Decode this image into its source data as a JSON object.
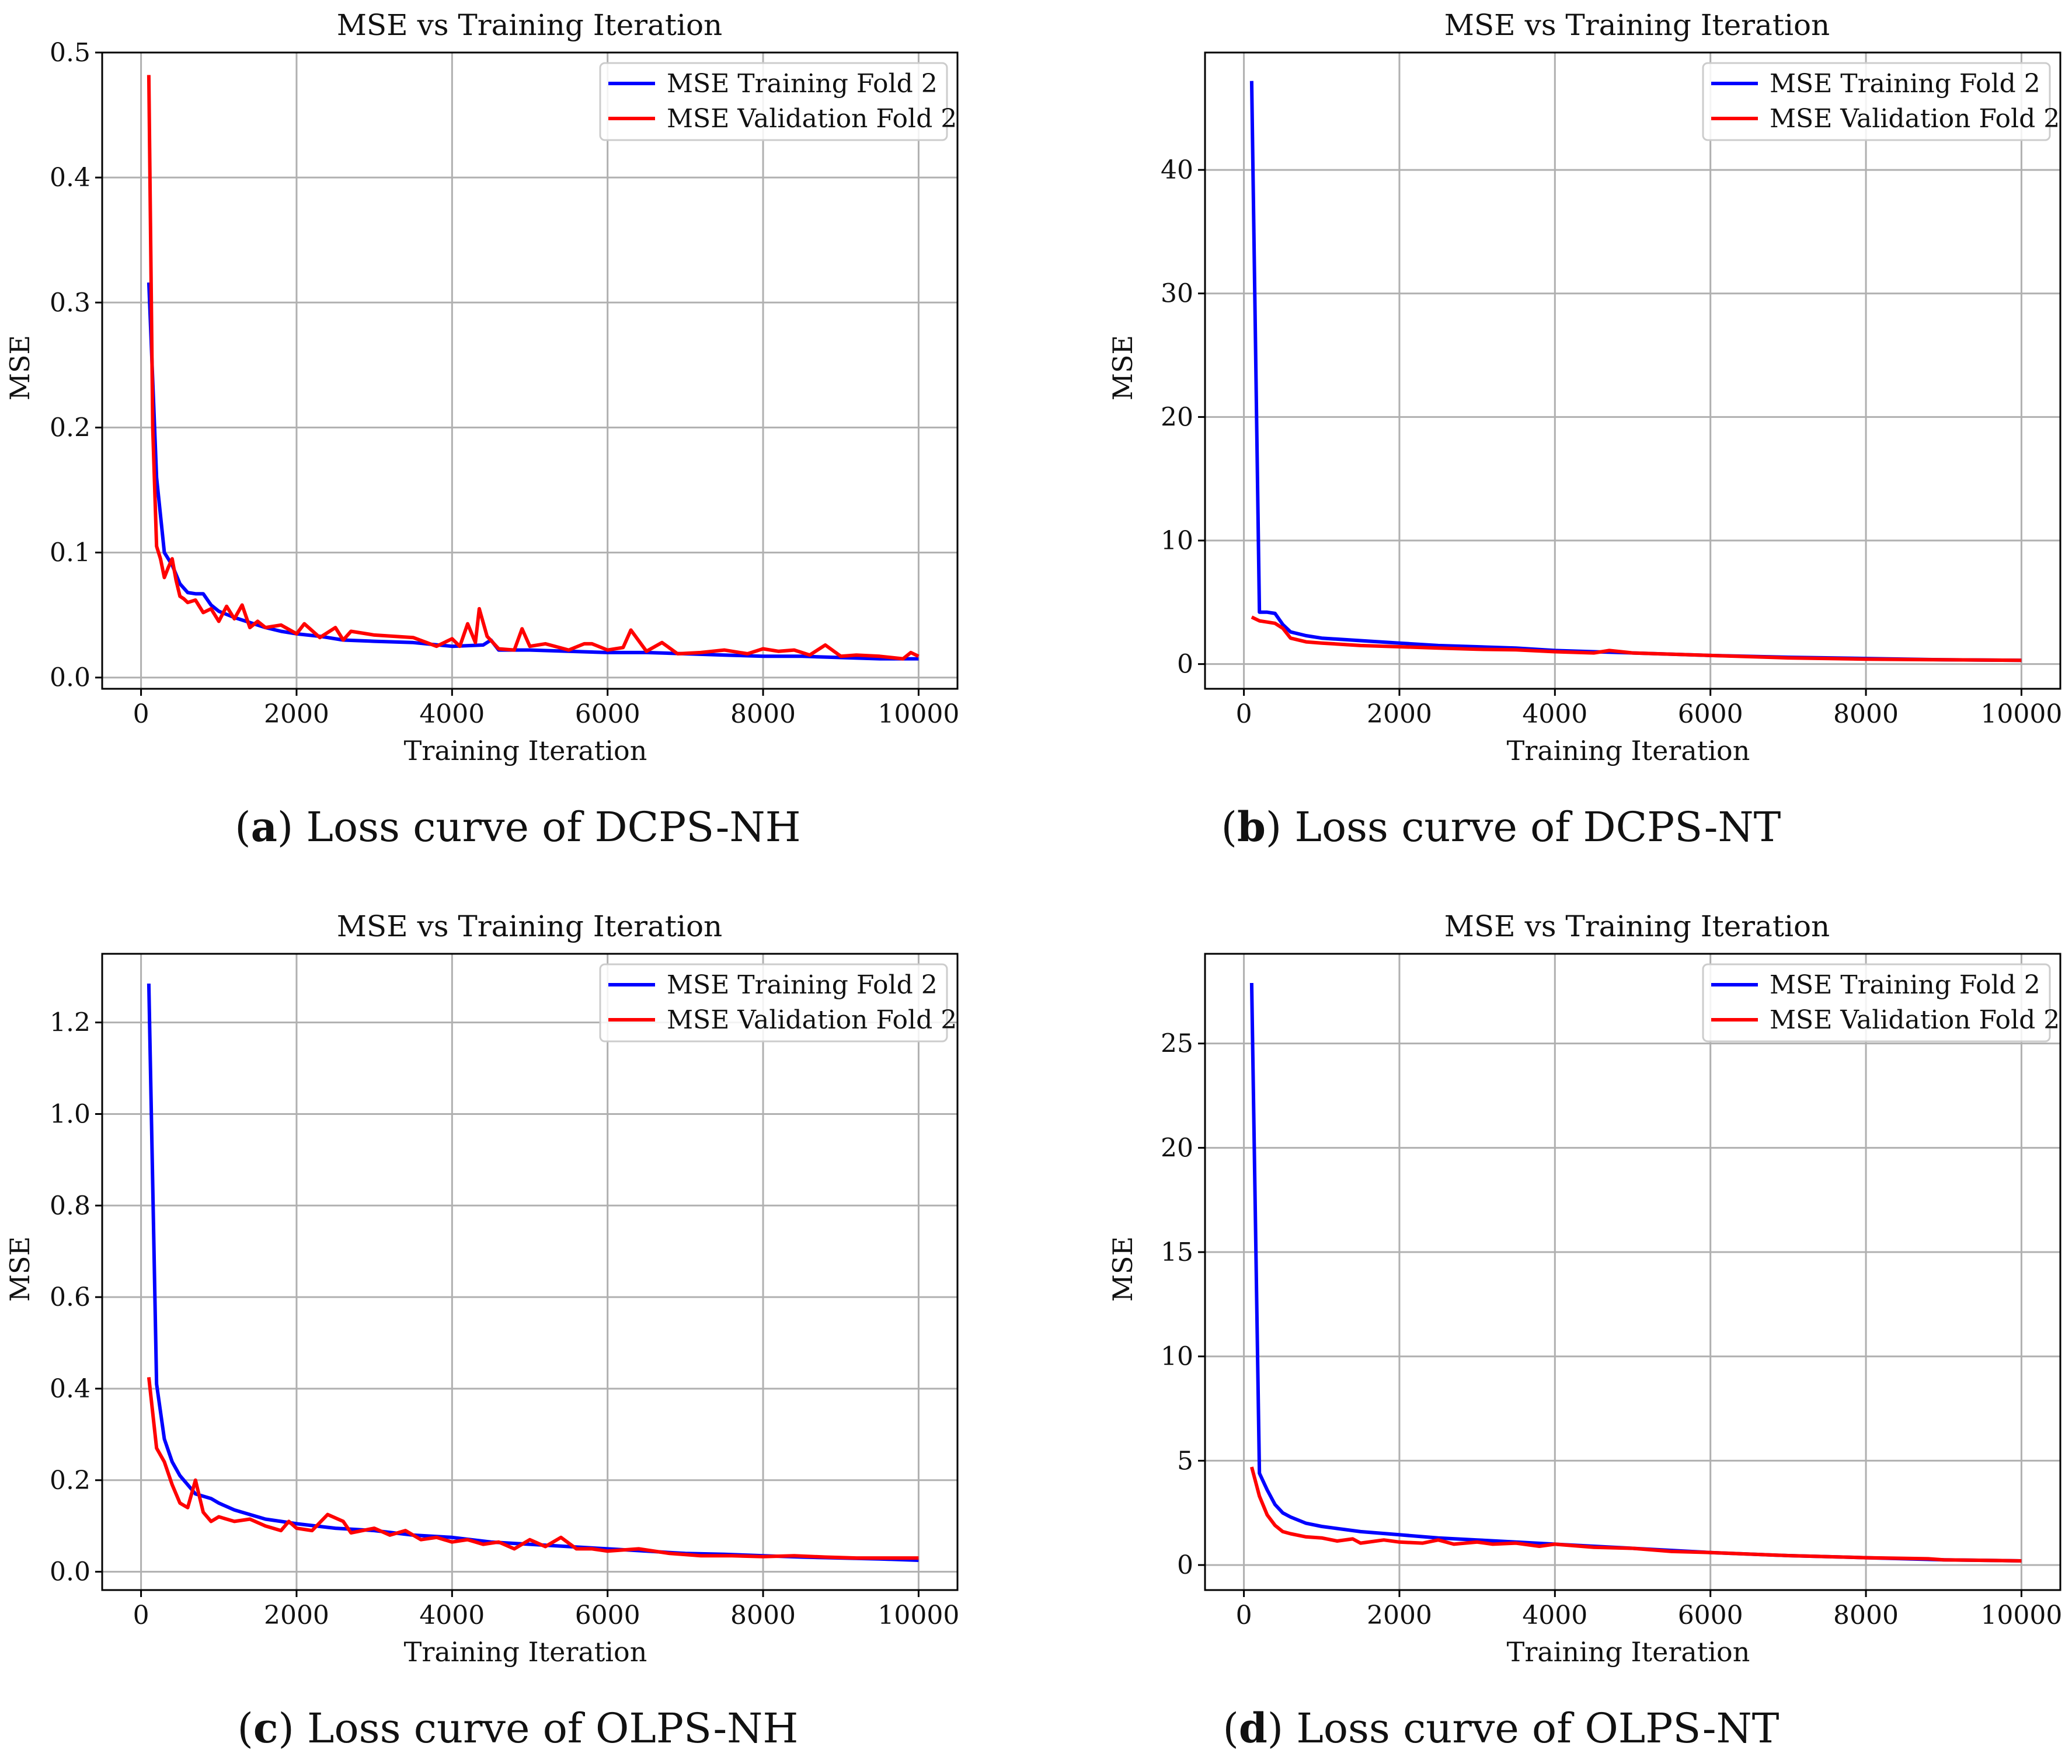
{
  "chart_data": [
    {
      "type": "line",
      "panel": "a",
      "caption_letter": "a",
      "caption_text": "Loss curve of DCPS-NH",
      "title": "MSE vs Training Iteration",
      "xlabel": "Training Iteration",
      "ylabel": "MSE",
      "xlim": [
        -500,
        10500
      ],
      "ylim": [
        -0.009,
        0.5
      ],
      "xticks": [
        0,
        2000,
        4000,
        6000,
        8000,
        10000
      ],
      "yticks": [
        0.0,
        0.1,
        0.2,
        0.3,
        0.4,
        0.5
      ],
      "ytick_decimals": 1,
      "grid": true,
      "legend_position": "top-right",
      "series": [
        {
          "name": "MSE Training Fold 2",
          "color": "#0000ff",
          "x": [
            100,
            200,
            300,
            400,
            500,
            600,
            700,
            800,
            900,
            1000,
            1200,
            1400,
            1600,
            1800,
            2000,
            2300,
            2600,
            3000,
            3500,
            4000,
            4400,
            4500,
            4600,
            5000,
            5500,
            6000,
            6500,
            7000,
            7500,
            8000,
            8500,
            9000,
            9500,
            10000
          ],
          "y": [
            0.316,
            0.16,
            0.1,
            0.09,
            0.075,
            0.068,
            0.067,
            0.067,
            0.058,
            0.053,
            0.048,
            0.044,
            0.04,
            0.037,
            0.035,
            0.033,
            0.03,
            0.029,
            0.028,
            0.025,
            0.026,
            0.03,
            0.022,
            0.022,
            0.021,
            0.02,
            0.02,
            0.019,
            0.018,
            0.017,
            0.017,
            0.016,
            0.015,
            0.015
          ]
        },
        {
          "name": "MSE Validation Fold 2",
          "color": "#ff0000",
          "x": [
            100,
            150,
            200,
            250,
            300,
            350,
            400,
            450,
            500,
            550,
            600,
            700,
            800,
            900,
            1000,
            1100,
            1200,
            1300,
            1400,
            1500,
            1600,
            1800,
            2000,
            2100,
            2300,
            2500,
            2600,
            2700,
            3000,
            3500,
            3800,
            4000,
            4100,
            4200,
            4300,
            4350,
            4450,
            4600,
            4800,
            4900,
            5000,
            5200,
            5500,
            5700,
            5800,
            6000,
            6200,
            6300,
            6500,
            6700,
            6900,
            7200,
            7500,
            7800,
            8000,
            8200,
            8400,
            8600,
            8800,
            9000,
            9200,
            9500,
            9800,
            9900,
            10000
          ],
          "y": [
            0.482,
            0.2,
            0.105,
            0.095,
            0.08,
            0.088,
            0.095,
            0.078,
            0.065,
            0.063,
            0.06,
            0.062,
            0.052,
            0.055,
            0.045,
            0.057,
            0.047,
            0.058,
            0.04,
            0.045,
            0.04,
            0.042,
            0.035,
            0.043,
            0.032,
            0.04,
            0.03,
            0.037,
            0.034,
            0.032,
            0.025,
            0.031,
            0.025,
            0.043,
            0.028,
            0.055,
            0.033,
            0.023,
            0.022,
            0.039,
            0.025,
            0.027,
            0.022,
            0.027,
            0.027,
            0.022,
            0.024,
            0.038,
            0.021,
            0.028,
            0.019,
            0.02,
            0.022,
            0.019,
            0.023,
            0.021,
            0.022,
            0.018,
            0.026,
            0.017,
            0.018,
            0.017,
            0.015,
            0.02,
            0.017
          ]
        }
      ]
    },
    {
      "type": "line",
      "panel": "b",
      "caption_letter": "b",
      "caption_text": "Loss curve of DCPS-NT",
      "title": "MSE vs Training Iteration",
      "xlabel": "Training Iteration",
      "ylabel": "MSE",
      "xlim": [
        -500,
        10500
      ],
      "ylim": [
        -2.0,
        49.5
      ],
      "xticks": [
        0,
        2000,
        4000,
        6000,
        8000,
        10000
      ],
      "yticks": [
        0,
        10,
        20,
        30,
        40
      ],
      "ytick_decimals": 0,
      "grid": true,
      "legend_position": "top-right",
      "series": [
        {
          "name": "MSE Training Fold 2",
          "color": "#0000ff",
          "x": [
            100,
            200,
            300,
            400,
            500,
            600,
            800,
            1000,
            1500,
            2000,
            2500,
            3000,
            3500,
            4000,
            4500,
            5000,
            5500,
            6000,
            7000,
            8000,
            9000,
            10000
          ],
          "y": [
            47.2,
            4.2,
            4.2,
            4.1,
            3.2,
            2.6,
            2.3,
            2.1,
            1.9,
            1.7,
            1.5,
            1.4,
            1.3,
            1.1,
            1.0,
            0.9,
            0.8,
            0.7,
            0.55,
            0.45,
            0.35,
            0.3
          ]
        },
        {
          "name": "MSE Validation Fold 2",
          "color": "#ff0000",
          "x": [
            100,
            200,
            300,
            400,
            500,
            600,
            800,
            1000,
            1500,
            2000,
            2500,
            3000,
            3500,
            4000,
            4500,
            4700,
            5000,
            5500,
            6000,
            7000,
            8000,
            9000,
            10000
          ],
          "y": [
            3.8,
            3.5,
            3.4,
            3.3,
            2.9,
            2.1,
            1.8,
            1.7,
            1.5,
            1.4,
            1.3,
            1.2,
            1.15,
            1.0,
            0.9,
            1.1,
            0.9,
            0.8,
            0.7,
            0.5,
            0.4,
            0.35,
            0.3
          ]
        }
      ]
    },
    {
      "type": "line",
      "panel": "c",
      "caption_letter": "c",
      "caption_text": "Loss curve of OLPS-NH",
      "title": "MSE vs Training Iteration",
      "xlabel": "Training Iteration",
      "ylabel": "MSE",
      "xlim": [
        -500,
        10500
      ],
      "ylim": [
        -0.04,
        1.35
      ],
      "xticks": [
        0,
        2000,
        4000,
        6000,
        8000,
        10000
      ],
      "yticks": [
        0.0,
        0.2,
        0.4,
        0.6,
        0.8,
        1.0,
        1.2
      ],
      "ytick_decimals": 1,
      "grid": true,
      "legend_position": "top-right",
      "series": [
        {
          "name": "MSE Training Fold 2",
          "color": "#0000ff",
          "x": [
            100,
            200,
            300,
            400,
            500,
            600,
            700,
            800,
            900,
            1000,
            1200,
            1400,
            1600,
            1800,
            2000,
            2500,
            3000,
            3500,
            4000,
            4500,
            5000,
            5500,
            6000,
            6500,
            7000,
            7500,
            8000,
            8500,
            9000,
            9500,
            10000
          ],
          "y": [
            1.285,
            0.41,
            0.29,
            0.24,
            0.21,
            0.19,
            0.17,
            0.165,
            0.16,
            0.15,
            0.135,
            0.125,
            0.115,
            0.11,
            0.105,
            0.095,
            0.09,
            0.08,
            0.075,
            0.065,
            0.06,
            0.055,
            0.05,
            0.045,
            0.04,
            0.038,
            0.035,
            0.032,
            0.03,
            0.028,
            0.025
          ]
        },
        {
          "name": "MSE Validation Fold 2",
          "color": "#ff0000",
          "x": [
            100,
            200,
            300,
            400,
            500,
            600,
            700,
            800,
            900,
            1000,
            1200,
            1400,
            1600,
            1800,
            1900,
            2000,
            2200,
            2400,
            2600,
            2700,
            3000,
            3200,
            3400,
            3600,
            3800,
            4000,
            4200,
            4400,
            4600,
            4800,
            5000,
            5200,
            5400,
            5600,
            5800,
            6000,
            6400,
            6800,
            7200,
            7600,
            8000,
            8400,
            8800,
            9200,
            9600,
            10000
          ],
          "y": [
            0.425,
            0.27,
            0.24,
            0.19,
            0.15,
            0.14,
            0.2,
            0.13,
            0.11,
            0.12,
            0.11,
            0.115,
            0.1,
            0.09,
            0.11,
            0.095,
            0.09,
            0.125,
            0.11,
            0.085,
            0.095,
            0.08,
            0.09,
            0.07,
            0.075,
            0.065,
            0.07,
            0.06,
            0.065,
            0.05,
            0.07,
            0.055,
            0.075,
            0.05,
            0.05,
            0.045,
            0.05,
            0.04,
            0.035,
            0.035,
            0.033,
            0.035,
            0.032,
            0.03,
            0.03,
            0.03
          ]
        }
      ]
    },
    {
      "type": "line",
      "panel": "d",
      "caption_letter": "d",
      "caption_text": "Loss curve of OLPS-NT",
      "title": "MSE vs Training Iteration",
      "xlabel": "Training Iteration",
      "ylabel": "MSE",
      "xlim": [
        -500,
        10500
      ],
      "ylim": [
        -1.2,
        29.3
      ],
      "xticks": [
        0,
        2000,
        4000,
        6000,
        8000,
        10000
      ],
      "yticks": [
        0,
        5,
        10,
        15,
        20,
        25
      ],
      "ytick_decimals": 0,
      "grid": true,
      "legend_position": "top-right",
      "series": [
        {
          "name": "MSE Training Fold 2",
          "color": "#0000ff",
          "x": [
            100,
            200,
            300,
            400,
            500,
            600,
            800,
            1000,
            1500,
            2000,
            2500,
            3000,
            3500,
            4000,
            4500,
            5000,
            5500,
            6000,
            7000,
            8000,
            9000,
            10000
          ],
          "y": [
            27.9,
            4.4,
            3.6,
            2.9,
            2.5,
            2.3,
            2.0,
            1.85,
            1.6,
            1.45,
            1.3,
            1.2,
            1.1,
            1.0,
            0.9,
            0.8,
            0.7,
            0.6,
            0.45,
            0.35,
            0.25,
            0.2
          ]
        },
        {
          "name": "MSE Validation Fold 2",
          "color": "#ff0000",
          "x": [
            100,
            200,
            300,
            400,
            500,
            600,
            800,
            1000,
            1200,
            1400,
            1500,
            1800,
            2000,
            2300,
            2500,
            2700,
            3000,
            3200,
            3500,
            3800,
            4000,
            4500,
            5000,
            5500,
            6000,
            7000,
            8000,
            8800,
            9000,
            10000
          ],
          "y": [
            4.7,
            3.3,
            2.4,
            1.9,
            1.6,
            1.5,
            1.35,
            1.3,
            1.15,
            1.25,
            1.05,
            1.2,
            1.1,
            1.05,
            1.2,
            1.0,
            1.1,
            1.0,
            1.05,
            0.9,
            1.0,
            0.85,
            0.8,
            0.65,
            0.6,
            0.45,
            0.35,
            0.3,
            0.25,
            0.2
          ]
        }
      ]
    }
  ]
}
